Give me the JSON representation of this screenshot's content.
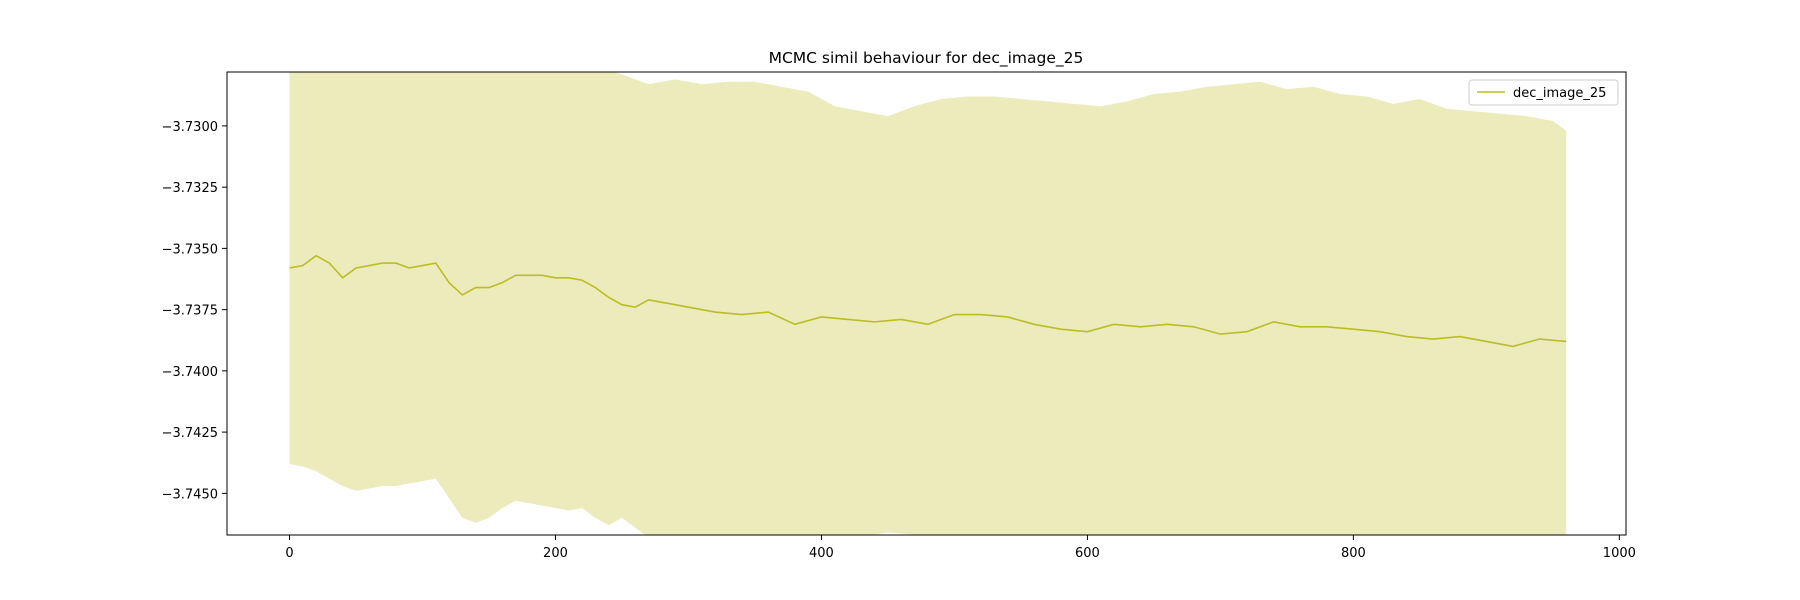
{
  "chart_data": {
    "type": "line",
    "title": "MCMC simil behaviour for dec_image_25",
    "xlabel": "",
    "ylabel": "",
    "xlim": [
      -47,
      1005
    ],
    "ylim": [
      -3.7467,
      -3.7278
    ],
    "x_ticks": [
      0,
      200,
      400,
      600,
      800,
      1000
    ],
    "x_tick_labels": [
      "0",
      "200",
      "400",
      "600",
      "800",
      "1000"
    ],
    "y_ticks": [
      -3.73,
      -3.7325,
      -3.735,
      -3.7375,
      -3.74,
      -3.7425,
      -3.745
    ],
    "y_tick_labels": [
      "−3.7300",
      "−3.7325",
      "−3.7350",
      "−3.7375",
      "−3.7400",
      "−3.7425",
      "−3.7450"
    ],
    "grid": false,
    "legend_position": "top-right",
    "series": [
      {
        "name": "dec_image_25",
        "color": "#bcbd22",
        "band_color": "#bcbd22",
        "band_opacity": 0.3,
        "mean": {
          "x": [
            0,
            10,
            20,
            30,
            40,
            50,
            60,
            70,
            80,
            90,
            100,
            110,
            120,
            130,
            140,
            150,
            160,
            170,
            180,
            190,
            200,
            210,
            220,
            230,
            240,
            250,
            260,
            270,
            280,
            290,
            300,
            320,
            340,
            360,
            380,
            400,
            420,
            440,
            460,
            480,
            500,
            520,
            540,
            560,
            580,
            600,
            620,
            640,
            660,
            680,
            700,
            720,
            740,
            760,
            780,
            800,
            820,
            840,
            860,
            880,
            900,
            920,
            940,
            960
          ],
          "y": [
            -3.7358,
            -3.7357,
            -3.7353,
            -3.7356,
            -3.7362,
            -3.7358,
            -3.7357,
            -3.7356,
            -3.7356,
            -3.7358,
            -3.7357,
            -3.7356,
            -3.7364,
            -3.7369,
            -3.7366,
            -3.7366,
            -3.7364,
            -3.7361,
            -3.7361,
            -3.7361,
            -3.7362,
            -3.7362,
            -3.7363,
            -3.7366,
            -3.737,
            -3.7373,
            -3.7374,
            -3.7371,
            -3.7372,
            -3.7373,
            -3.7374,
            -3.7376,
            -3.7377,
            -3.7376,
            -3.7381,
            -3.7378,
            -3.7379,
            -3.738,
            -3.7379,
            -3.7381,
            -3.7377,
            -3.7377,
            -3.7378,
            -3.7381,
            -3.7383,
            -3.7384,
            -3.7381,
            -3.7382,
            -3.7381,
            -3.7382,
            -3.7385,
            -3.7384,
            -3.738,
            -3.7382,
            -3.7382,
            -3.7383,
            -3.7384,
            -3.7386,
            -3.7387,
            -3.7386,
            -3.7388,
            -3.739,
            -3.7387,
            -3.7388
          ]
        },
        "upper": {
          "x": [
            0,
            50,
            100,
            150,
            200,
            250,
            270,
            290,
            310,
            330,
            350,
            370,
            390,
            410,
            430,
            450,
            470,
            490,
            510,
            530,
            550,
            570,
            590,
            610,
            630,
            650,
            670,
            690,
            710,
            730,
            750,
            770,
            790,
            810,
            830,
            850,
            870,
            890,
            910,
            930,
            950,
            960
          ],
          "y": [
            -3.727,
            -3.727,
            -3.727,
            -3.727,
            -3.727,
            -3.7279,
            -3.7283,
            -3.7281,
            -3.7283,
            -3.7282,
            -3.7282,
            -3.7284,
            -3.7286,
            -3.7292,
            -3.7294,
            -3.7296,
            -3.7292,
            -3.7289,
            -3.7288,
            -3.7288,
            -3.7289,
            -3.729,
            -3.7291,
            -3.7292,
            -3.729,
            -3.7287,
            -3.7286,
            -3.7284,
            -3.7283,
            -3.7282,
            -3.7285,
            -3.7284,
            -3.7287,
            -3.7288,
            -3.7291,
            -3.7289,
            -3.7293,
            -3.7294,
            -3.7295,
            -3.7296,
            -3.7298,
            -3.7302
          ]
        },
        "lower": {
          "x": [
            0,
            10,
            20,
            30,
            40,
            50,
            60,
            70,
            80,
            90,
            100,
            110,
            120,
            130,
            140,
            150,
            160,
            170,
            180,
            190,
            200,
            210,
            220,
            230,
            240,
            250,
            260,
            270,
            280,
            290,
            300,
            350,
            400,
            450,
            500,
            550,
            600,
            650,
            700,
            750,
            800,
            850,
            900,
            960
          ],
          "y": [
            -3.7438,
            -3.7439,
            -3.7441,
            -3.7444,
            -3.7447,
            -3.7449,
            -3.7448,
            -3.7447,
            -3.7447,
            -3.7446,
            -3.7445,
            -3.7444,
            -3.7452,
            -3.746,
            -3.7462,
            -3.746,
            -3.7456,
            -3.7453,
            -3.7454,
            -3.7455,
            -3.7456,
            -3.7457,
            -3.7456,
            -3.746,
            -3.7463,
            -3.746,
            -3.7464,
            -3.7468,
            -3.7467,
            -3.7468,
            -3.747,
            -3.7472,
            -3.747,
            -3.7466,
            -3.7468,
            -3.7467,
            -3.7472,
            -3.7473,
            -3.7474,
            -3.7475,
            -3.7476,
            -3.7476,
            -3.7477,
            -3.7478
          ]
        }
      }
    ]
  }
}
